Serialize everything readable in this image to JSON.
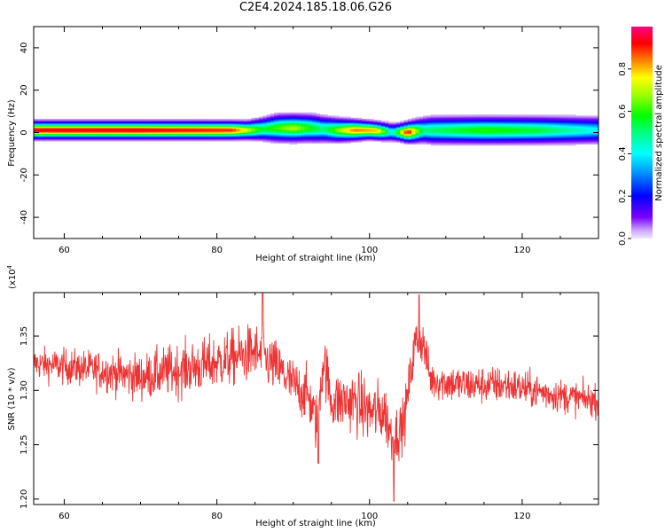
{
  "title": "C2E4.2024.185.18.06.G26",
  "chart_data": [
    {
      "type": "heatmap",
      "xlabel": "Height of straight line (km)",
      "ylabel": "Frequency (Hz)",
      "xlim": [
        56,
        130
      ],
      "ylim": [
        -50,
        50
      ],
      "xticks": [
        60,
        80,
        100,
        120
      ],
      "yticks": [
        -40,
        -20,
        0,
        20,
        40
      ],
      "colorbar": {
        "label": "Normalized spectral amplitude",
        "range": [
          0,
          1
        ],
        "ticks": [
          "0.0",
          "0.2",
          "0.4",
          "0.6",
          "0.8"
        ],
        "colormap": "hsv-like (white/violet → blue → cyan → green → yellow → red → magenta)"
      },
      "ridge": {
        "frequency_center_hz": [
          [
            56,
            1
          ],
          [
            70,
            1
          ],
          [
            84,
            1
          ],
          [
            88,
            2
          ],
          [
            92,
            2
          ],
          [
            96,
            1
          ],
          [
            100,
            1
          ],
          [
            103,
            0
          ],
          [
            105,
            0
          ],
          [
            107,
            1
          ],
          [
            115,
            1
          ],
          [
            130,
            1
          ]
        ],
        "peak_amplitude": [
          [
            56,
            0.95
          ],
          [
            70,
            0.95
          ],
          [
            82,
            0.9
          ],
          [
            86,
            0.55
          ],
          [
            90,
            0.7
          ],
          [
            94,
            0.5
          ],
          [
            98,
            0.85
          ],
          [
            101,
            0.8
          ],
          [
            103,
            0.4
          ],
          [
            105,
            0.95
          ],
          [
            107,
            0.5
          ],
          [
            115,
            0.6
          ],
          [
            122,
            0.55
          ],
          [
            130,
            0.4
          ]
        ],
        "half_width_hz": [
          [
            56,
            2
          ],
          [
            84,
            2
          ],
          [
            88,
            3
          ],
          [
            93,
            3
          ],
          [
            100,
            2
          ],
          [
            104,
            2
          ],
          [
            108,
            3
          ],
          [
            130,
            3
          ]
        ]
      }
    },
    {
      "type": "line",
      "xlabel": "Height of straight line (km)",
      "ylabel": "SNR (10 * v/v)",
      "exponent_label": "(x10^4)",
      "xlim": [
        56,
        130
      ],
      "ylim": [
        1.195,
        1.39
      ],
      "xticks": [
        60,
        80,
        100,
        120
      ],
      "yticks": [
        "1.20",
        "1.25",
        "1.30",
        "1.35"
      ],
      "color": "#ee3333",
      "series": [
        {
          "name": "",
          "envelope_mean": [
            [
              56,
              1.325
            ],
            [
              60,
              1.322
            ],
            [
              65,
              1.318
            ],
            [
              70,
              1.312
            ],
            [
              74,
              1.318
            ],
            [
              78,
              1.322
            ],
            [
              82,
              1.33
            ],
            [
              85,
              1.335
            ],
            [
              88,
              1.32
            ],
            [
              90,
              1.305
            ],
            [
              92,
              1.295
            ],
            [
              93,
              1.27
            ],
            [
              94,
              1.33
            ],
            [
              95,
              1.29
            ],
            [
              98,
              1.29
            ],
            [
              100,
              1.28
            ],
            [
              102,
              1.28
            ],
            [
              103,
              1.255
            ],
            [
              104.5,
              1.27
            ],
            [
              106,
              1.345
            ],
            [
              107,
              1.345
            ],
            [
              108,
              1.31
            ],
            [
              112,
              1.305
            ],
            [
              118,
              1.305
            ],
            [
              125,
              1.295
            ],
            [
              130,
              1.29
            ]
          ],
          "noise_amplitude": [
            [
              56,
              0.012
            ],
            [
              65,
              0.015
            ],
            [
              75,
              0.02
            ],
            [
              85,
              0.022
            ],
            [
              90,
              0.02
            ],
            [
              95,
              0.022
            ],
            [
              100,
              0.025
            ],
            [
              104,
              0.02
            ],
            [
              108,
              0.015
            ],
            [
              118,
              0.014
            ],
            [
              130,
              0.012
            ]
          ],
          "extremes": [
            [
              86,
              1.39
            ],
            [
              103.2,
              1.198
            ],
            [
              106.5,
              1.388
            ],
            [
              93.3,
              1.233
            ]
          ]
        }
      ]
    }
  ]
}
